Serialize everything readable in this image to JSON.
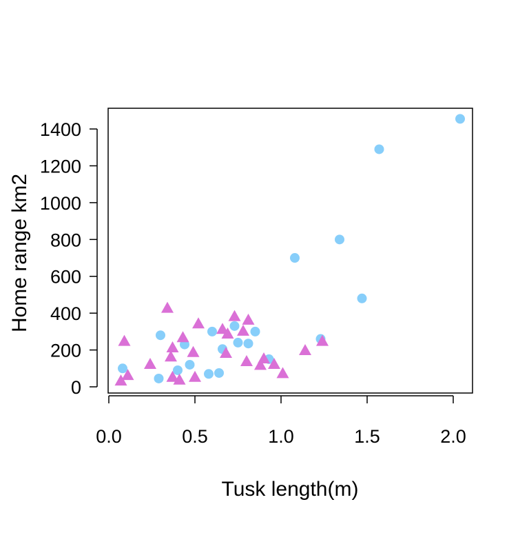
{
  "chart_data": {
    "type": "scatter",
    "title": "",
    "xlabel": "Tusk length(m)",
    "ylabel": "Home range km2",
    "xlim": [
      0,
      2.1
    ],
    "ylim": [
      -50,
      1520
    ],
    "x_ticks": [
      0.0,
      0.5,
      1.0,
      1.5,
      2.0
    ],
    "x_tick_labels": [
      "0.0",
      "0.5",
      "1.0",
      "1.5",
      "2.0"
    ],
    "y_ticks": [
      0,
      200,
      400,
      600,
      800,
      1000,
      1200,
      1400
    ],
    "y_tick_labels": [
      "0",
      "200",
      "400",
      "600",
      "800",
      "1000",
      "1200",
      "1400"
    ],
    "grid": false,
    "legend": "none",
    "series": [
      {
        "marker": "circle",
        "color": "#87CEFA",
        "points": [
          [
            0.08,
            100
          ],
          [
            0.29,
            45
          ],
          [
            0.3,
            280
          ],
          [
            0.4,
            90
          ],
          [
            0.44,
            230
          ],
          [
            0.47,
            120
          ],
          [
            0.58,
            70
          ],
          [
            0.6,
            300
          ],
          [
            0.64,
            75
          ],
          [
            0.66,
            205
          ],
          [
            0.73,
            330
          ],
          [
            0.75,
            240
          ],
          [
            0.81,
            235
          ],
          [
            0.85,
            300
          ],
          [
            0.93,
            150
          ],
          [
            1.08,
            700
          ],
          [
            1.23,
            260
          ],
          [
            1.34,
            800
          ],
          [
            1.47,
            480
          ],
          [
            1.57,
            1290
          ],
          [
            2.04,
            1455
          ]
        ]
      },
      {
        "marker": "triangle",
        "color": "#DA70D6",
        "points": [
          [
            0.07,
            30
          ],
          [
            0.09,
            245
          ],
          [
            0.11,
            60
          ],
          [
            0.24,
            120
          ],
          [
            0.34,
            425
          ],
          [
            0.36,
            160
          ],
          [
            0.37,
            210
          ],
          [
            0.37,
            50
          ],
          [
            0.41,
            35
          ],
          [
            0.43,
            265
          ],
          [
            0.49,
            185
          ],
          [
            0.5,
            50
          ],
          [
            0.52,
            340
          ],
          [
            0.66,
            310
          ],
          [
            0.68,
            180
          ],
          [
            0.69,
            285
          ],
          [
            0.73,
            380
          ],
          [
            0.78,
            300
          ],
          [
            0.8,
            135
          ],
          [
            0.81,
            360
          ],
          [
            0.88,
            115
          ],
          [
            0.9,
            150
          ],
          [
            0.96,
            120
          ],
          [
            1.01,
            70
          ],
          [
            1.14,
            195
          ],
          [
            1.24,
            245
          ]
        ]
      }
    ]
  }
}
